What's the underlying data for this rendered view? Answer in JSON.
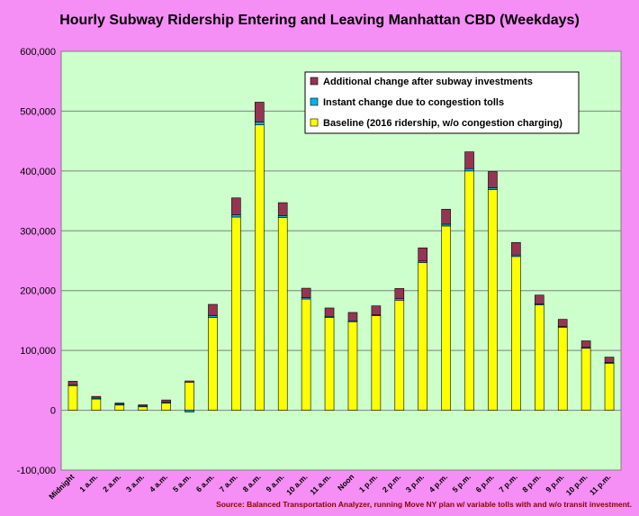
{
  "chart_data": {
    "type": "bar",
    "stacked": true,
    "title": "Hourly Subway Ridership Entering and Leaving Manhattan CBD (Weekdays)",
    "source": "Source: Balanced Transportation Analyzer, running Move NY plan w/ variable tolls with and w/o transit investment.",
    "xlabel": "",
    "ylabel": "",
    "ylim": [
      -100000,
      600000
    ],
    "yticks": [
      -100000,
      0,
      100000,
      200000,
      300000,
      400000,
      500000,
      600000
    ],
    "ytick_labels": [
      "-100,000",
      "0",
      "100,000",
      "200,000",
      "300,000",
      "400,000",
      "500,000",
      "600,000"
    ],
    "grid": true,
    "legend_position": "top-right",
    "categories": [
      "Midnight",
      "1 a.m.",
      "2 a.m.",
      "3 a.m.",
      "4 a.m.",
      "5 a.m.",
      "6 a.m.",
      "7 a.m.",
      "8 a.m.",
      "9 a.m.",
      "10 a.m.",
      "11 a.m.",
      "Noon",
      "1 p.m.",
      "2 p.m.",
      "3 p.m.",
      "4 p.m.",
      "5 p.m.",
      "6 p.m.",
      "7 p.m.",
      "8 p.m.",
      "9 p.m.",
      "10 p.m.",
      "11 p.m."
    ],
    "series": [
      {
        "name": "Baseline (2016 ridership, w/o congestion charging)",
        "color": "#ffff00",
        "values": [
          42000,
          20000,
          10000,
          7000,
          13000,
          47000,
          155000,
          323000,
          477000,
          322000,
          186000,
          155000,
          148000,
          158000,
          184000,
          247000,
          308000,
          400000,
          369000,
          257000,
          176000,
          139000,
          104000,
          79000
        ]
      },
      {
        "name": "Instant change due to congestion tolls",
        "color": "#00b4e6",
        "values": [
          500,
          200,
          100,
          100,
          200,
          -3000,
          3000,
          4000,
          5000,
          3000,
          2000,
          2000,
          1500,
          1500,
          2500,
          2500,
          3000,
          4000,
          3000,
          2500,
          1500,
          1000,
          1000,
          800
        ]
      },
      {
        "name": "Additional change after subway investments",
        "color": "#953553",
        "values": [
          6000,
          3000,
          2000,
          2000,
          4000,
          2000,
          19000,
          28000,
          33000,
          22000,
          16000,
          14000,
          14000,
          15000,
          17000,
          22000,
          25000,
          28000,
          27000,
          21000,
          15000,
          12000,
          11000,
          9000
        ]
      }
    ],
    "legend_order": [
      2,
      1,
      0
    ]
  }
}
